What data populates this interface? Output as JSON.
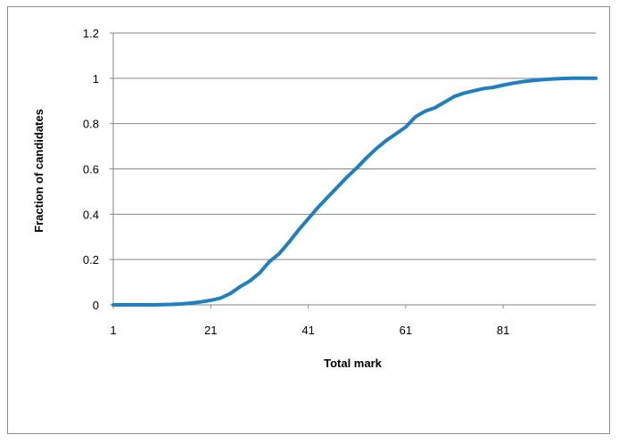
{
  "chart_data": {
    "type": "line",
    "title": "",
    "xlabel": "Total mark",
    "ylabel": "Fraction of candidates",
    "xlim": [
      1,
      100
    ],
    "ylim": [
      0,
      1.2
    ],
    "x_ticks": [
      "1",
      "21",
      "41",
      "61",
      "81"
    ],
    "x_tick_values": [
      1,
      21,
      41,
      61,
      81
    ],
    "y_ticks": [
      "0",
      "0.2",
      "0.4",
      "0.6",
      "0.8",
      "1",
      "1.2"
    ],
    "y_tick_values": [
      0,
      0.2,
      0.4,
      0.6,
      0.8,
      1.0,
      1.2
    ],
    "grid": "horizontal",
    "legend": "none",
    "series": [
      {
        "color": "#1f7fbf",
        "x": [
          1,
          5,
          9,
          11,
          13,
          15,
          17,
          19,
          21,
          23,
          25,
          27,
          29,
          31,
          33,
          35,
          37,
          39,
          41,
          43,
          45,
          47,
          49,
          51,
          53,
          55,
          57,
          59,
          61,
          63,
          65,
          67,
          69,
          71,
          73,
          75,
          77,
          79,
          81,
          83,
          85,
          87,
          89,
          91,
          93,
          95,
          97,
          100
        ],
        "y": [
          0,
          0,
          0,
          0.001,
          0.002,
          0.004,
          0.008,
          0.013,
          0.02,
          0.03,
          0.05,
          0.08,
          0.105,
          0.14,
          0.19,
          0.225,
          0.275,
          0.33,
          0.38,
          0.43,
          0.475,
          0.52,
          0.565,
          0.605,
          0.65,
          0.69,
          0.725,
          0.755,
          0.785,
          0.83,
          0.855,
          0.87,
          0.895,
          0.92,
          0.935,
          0.945,
          0.955,
          0.96,
          0.97,
          0.978,
          0.985,
          0.99,
          0.994,
          0.997,
          0.999,
          1.0,
          1.0,
          1.0
        ]
      }
    ]
  }
}
